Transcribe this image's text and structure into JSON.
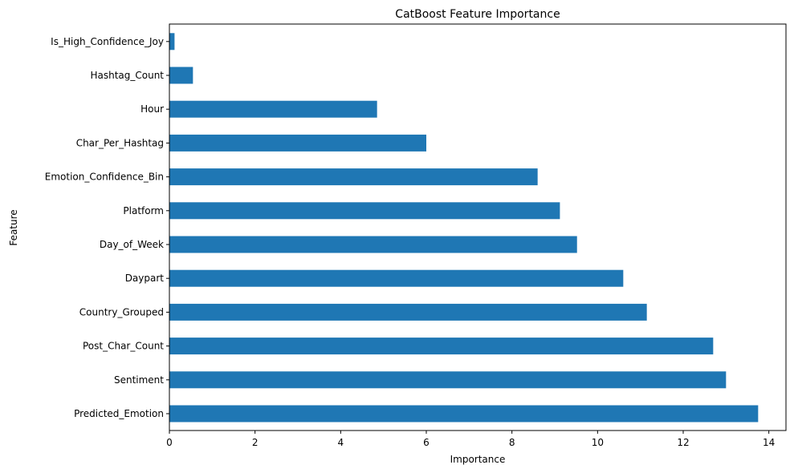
{
  "chart_data": {
    "type": "bar",
    "orientation": "horizontal",
    "title": "CatBoost Feature Importance",
    "xlabel": "Importance",
    "ylabel": "Feature",
    "categories": [
      "Predicted_Emotion",
      "Sentiment",
      "Post_Char_Count",
      "Country_Grouped",
      "Daypart",
      "Day_of_Week",
      "Platform",
      "Emotion_Confidence_Bin",
      "Char_Per_Hashtag",
      "Hour",
      "Hashtag_Count",
      "Is_High_Confidence_Joy"
    ],
    "values": [
      13.75,
      13.0,
      12.7,
      11.15,
      10.6,
      9.52,
      9.12,
      8.6,
      6.0,
      4.85,
      0.55,
      0.12
    ],
    "xlim": [
      0,
      14.4
    ],
    "xticks": [
      0,
      2,
      4,
      6,
      8,
      10,
      12,
      14
    ],
    "grid": false,
    "legend": "none",
    "bar_color": "#1f77b4"
  }
}
